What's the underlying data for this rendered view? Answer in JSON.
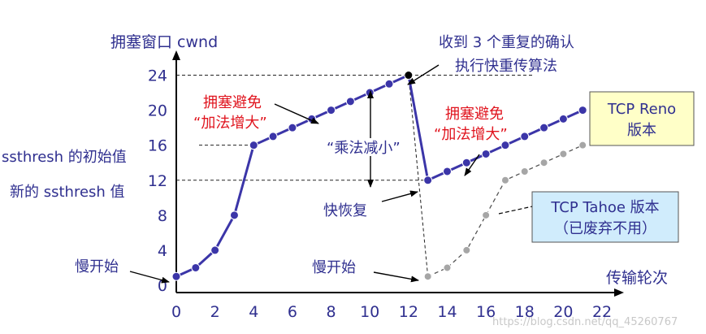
{
  "chart_data": {
    "type": "line",
    "ylabel": "拥塞窗口 cwnd",
    "xlabel": "传输轮次",
    "xlim": [
      0,
      22
    ],
    "ylim": [
      0,
      26
    ],
    "x_ticks": [
      0,
      2,
      4,
      6,
      8,
      10,
      12,
      14,
      16,
      18,
      20,
      22
    ],
    "y_ticks": [
      0,
      4,
      8,
      12,
      16,
      20,
      24
    ],
    "grid": false,
    "series": [
      {
        "name": "TCP Reno 版本",
        "color": "#3b35a8",
        "x": [
          0,
          1,
          2,
          3,
          4,
          5,
          6,
          7,
          8,
          9,
          10,
          11,
          12,
          13,
          14,
          15,
          16,
          17,
          18,
          19,
          20,
          21
        ],
        "y": [
          1,
          2,
          4,
          8,
          16,
          17,
          18,
          19,
          20,
          21,
          22,
          23,
          24,
          12,
          13,
          14,
          15,
          16,
          17,
          18,
          19,
          20
        ]
      },
      {
        "name": "TCP Tahoe 版本（已废弃不用）",
        "color": "#a6a6a6",
        "x": [
          13,
          14,
          15,
          16,
          17,
          18,
          19,
          20,
          21
        ],
        "y": [
          1,
          2,
          4,
          8,
          12,
          13,
          14,
          15,
          16
        ]
      }
    ],
    "annotations": {
      "slow_start_1": "慢开始",
      "slow_start_2": "慢开始",
      "ssthresh_initial": "ssthresh 的初始值",
      "ssthresh_new": "新的 ssthresh 值",
      "ca1_line1": "拥塞避免",
      "ca1_line2": "“加法增大”",
      "ca2_line1": "拥塞避免",
      "ca2_line2": "“加法增大”",
      "md": "“乘法减小”",
      "dupack_line1": "收到 3 个重复的确认",
      "dupack_line2": "执行快重传算法",
      "fast_recovery": "快恢复",
      "reno_line1": "TCP Reno",
      "reno_line2": "版本",
      "tahoe_line1": "TCP Tahoe 版本",
      "tahoe_line2": "（已废弃不用）"
    },
    "watermark": "https://blog.csdn.net/qq_45260767"
  }
}
